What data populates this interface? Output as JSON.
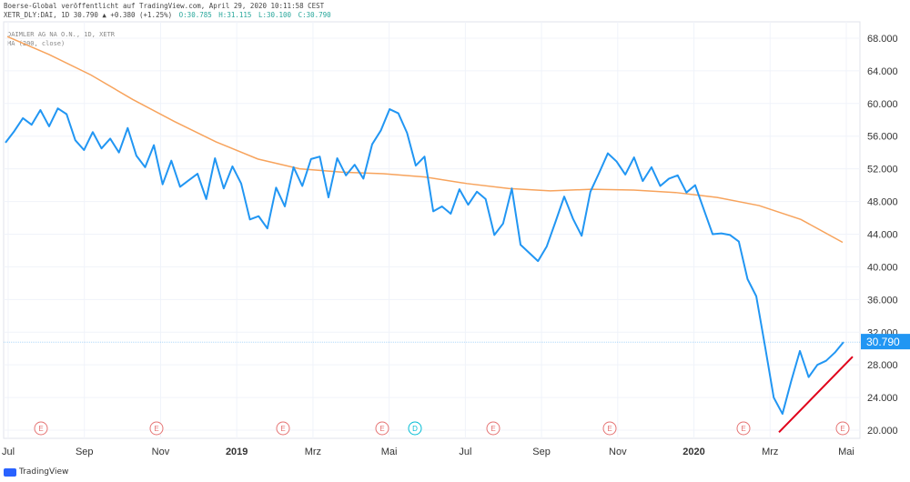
{
  "header": {
    "line1": "Boerse-Global veröffentlicht auf TradingView.com, April 29, 2020 10:11:58 CEST",
    "symbol": "XETR_DLY:DAI, 1D 30.790 ▲ +0.380 (+1.25%)",
    "o": "O:30.785",
    "h": "H:31.115",
    "l": "L:30.100",
    "c": "C:30.790"
  },
  "legend": {
    "instrument": "DAIMLER AG NA O.N., 1D, XETR",
    "ma": "MA (200, close)"
  },
  "footer": {
    "brand": "TradingView"
  },
  "colors": {
    "price": "#2196f3",
    "ma": "#f7a35c",
    "trendline": "#e0001a",
    "last_price_bg": "#2196f3"
  },
  "chart_data": {
    "type": "line",
    "last_price_label": "30.790",
    "last_price": 30.79,
    "ylim": [
      19,
      70
    ],
    "y_ticks": [
      "20.000",
      "24.000",
      "28.000",
      "32.000",
      "36.000",
      "40.000",
      "44.000",
      "48.000",
      "52.000",
      "56.000",
      "60.000",
      "64.000",
      "68.000"
    ],
    "x_labels": [
      "Jul",
      "Sep",
      "Nov",
      "2019",
      "Mrz",
      "Mai",
      "Jul",
      "Sep",
      "Nov",
      "2020",
      "Mrz",
      "Mai"
    ],
    "event_markers": [
      "E",
      "E",
      "E",
      "E",
      "D",
      "E",
      "E",
      "E",
      "E"
    ],
    "series": [
      {
        "values": [
          55.2,
          56.6,
          58.2,
          57.4,
          59.2,
          57.2,
          59.4,
          58.7,
          55.5,
          54.3,
          56.5,
          54.5,
          55.7,
          54.0,
          57.0,
          53.6,
          52.2,
          54.9,
          50.1,
          53.0,
          49.8,
          50.6,
          51.4,
          48.3,
          53.3,
          49.6,
          52.3,
          50.2,
          45.8,
          46.2,
          44.7,
          49.7,
          47.4,
          52.2,
          49.9,
          53.2,
          53.5,
          48.5,
          53.3,
          51.2,
          52.5,
          50.8,
          55.0,
          56.7,
          59.3,
          58.8,
          56.4,
          52.4,
          53.5,
          46.8,
          47.4,
          46.5,
          49.5,
          47.6,
          49.2,
          48.3,
          43.9,
          45.3,
          49.6,
          42.7,
          41.7,
          40.7,
          42.5,
          45.5,
          48.6,
          45.9,
          43.8,
          49.2,
          51.5,
          53.9,
          52.9,
          51.3,
          53.4,
          50.5,
          52.2,
          49.9,
          50.8,
          51.2,
          49.1,
          50.0,
          47.0,
          44.0,
          44.1,
          43.9,
          43.1,
          38.5,
          36.4,
          30.3,
          24.0,
          22.0,
          26.0,
          29.7,
          26.5,
          28.0,
          28.5,
          29.5,
          30.79
        ],
        "color": "#2196f3"
      },
      {
        "values": [
          68.2,
          66.0,
          63.5,
          60.5,
          57.8,
          55.3,
          53.2,
          52.0,
          51.6,
          51.4,
          51.0,
          50.2,
          49.6,
          49.3,
          49.5,
          49.4,
          49.1,
          48.5,
          47.5,
          45.8,
          43.0
        ],
        "color": "#f7a35c"
      }
    ],
    "trendline": {
      "from": 22.2,
      "to": 29.0
    }
  }
}
